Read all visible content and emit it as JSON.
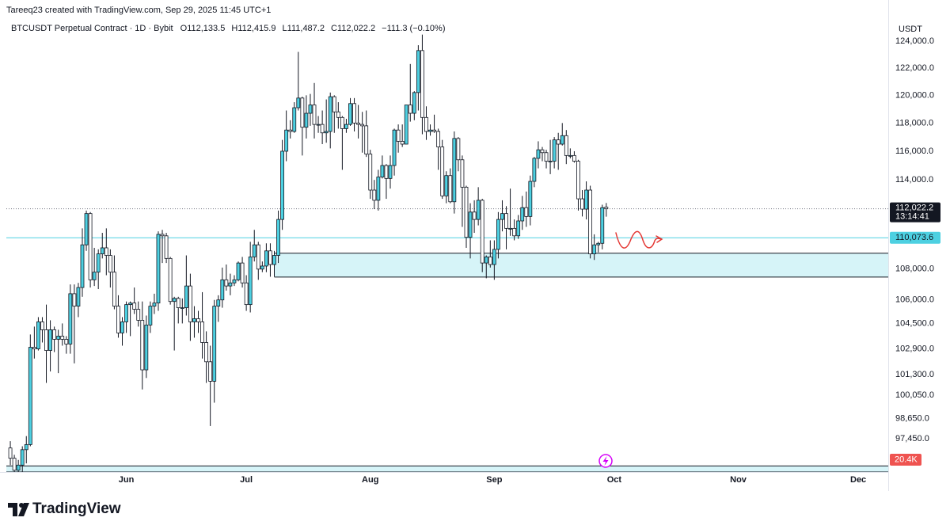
{
  "chart_data": {
    "type": "candlestick",
    "credit": "Tareeq23 created with TradingView.com, Sep 29, 2025 11:45 UTC+1",
    "title": "BTCUSDT Perpetual Contract · 1D · Bybit",
    "ohlc_labels": [
      "O112,133.5",
      "H112,415.9",
      "L111,487.2",
      "C112,022.2"
    ],
    "change": "−111.3 (−0.10%)",
    "currency": "USDT",
    "brand": "TradingView",
    "log_scale": true,
    "grid": false,
    "up_color": "#4dd0e1",
    "down_color": "#ffffff",
    "outline_color": "#131722",
    "xlim": [
      -1,
      219.5
    ],
    "xticks": [
      {
        "value": 29,
        "label": "Jun"
      },
      {
        "value": 59,
        "label": "Jul"
      },
      {
        "value": 90,
        "label": "Aug"
      },
      {
        "value": 121,
        "label": "Sep"
      },
      {
        "value": 151,
        "label": "Oct"
      },
      {
        "value": 182,
        "label": "Nov"
      },
      {
        "value": 212,
        "label": "Dec"
      }
    ],
    "ylim": [
      95500,
      124600
    ],
    "yticks": [
      {
        "value": 124000,
        "label": "124,000.0"
      },
      {
        "value": 122000,
        "label": "122,000.0"
      },
      {
        "value": 120000,
        "label": "120,000.0"
      },
      {
        "value": 118000,
        "label": "118,000.0"
      },
      {
        "value": 116000,
        "label": "116,000.0"
      },
      {
        "value": 114000,
        "label": "114,000.0"
      },
      {
        "value": 108000,
        "label": "108,000.0"
      },
      {
        "value": 106000,
        "label": "106,000.0"
      },
      {
        "value": 104500,
        "label": "104,500.0"
      },
      {
        "value": 102900,
        "label": "102,900.0"
      },
      {
        "value": 101300,
        "label": "101,300.0"
      },
      {
        "value": 100050,
        "label": "100,050.0"
      },
      {
        "value": 98650,
        "label": "98,650.0"
      },
      {
        "value": 97450,
        "label": "97,450.0"
      }
    ],
    "last_price": {
      "value": 112022.2,
      "label": "112,022.2"
    },
    "countdown": "13:14:41",
    "level_line": {
      "value": 110073.6,
      "label": "110,073.6",
      "color": "#4dd0e1"
    },
    "volume_label": "20.4K",
    "zones": [
      {
        "top": 109044,
        "bottom": 107482,
        "start": 66,
        "color": "#d6f4f8"
      },
      {
        "top": 95850,
        "bottom": 95500,
        "start": -1,
        "color": "#d6f4f8"
      }
    ],
    "candles": [
      [
        96900,
        97300,
        95900,
        96300
      ],
      [
        96300,
        96500,
        95400,
        95600
      ],
      [
        95600,
        96200,
        94800,
        95900
      ],
      [
        95900,
        97000,
        95300,
        96800
      ],
      [
        96800,
        97600,
        96000,
        97100
      ],
      [
        97100,
        103800,
        97000,
        103000
      ],
      [
        103000,
        104300,
        102300,
        102900
      ],
      [
        102900,
        104900,
        102800,
        104600
      ],
      [
        104600,
        104900,
        103300,
        104100
      ],
      [
        104100,
        105700,
        100800,
        102800
      ],
      [
        102800,
        104700,
        101500,
        104100
      ],
      [
        104100,
        104300,
        102700,
        103500
      ],
      [
        103500,
        104100,
        101400,
        103700
      ],
      [
        103700,
        104500,
        103100,
        103500
      ],
      [
        103500,
        103700,
        102600,
        103200
      ],
      [
        103200,
        107000,
        102600,
        106400
      ],
      [
        106400,
        107000,
        102000,
        105600
      ],
      [
        105600,
        107100,
        104900,
        106800
      ],
      [
        106800,
        110700,
        106200,
        109600
      ],
      [
        109600,
        111900,
        109200,
        111700
      ],
      [
        111700,
        111800,
        106800,
        107300
      ],
      [
        107300,
        109400,
        106900,
        107800
      ],
      [
        107800,
        109300,
        106700,
        109000
      ],
      [
        109000,
        110400,
        108700,
        109400
      ],
      [
        109400,
        110700,
        107600,
        108900
      ],
      [
        108900,
        109300,
        106800,
        107800
      ],
      [
        107800,
        108900,
        105400,
        105600
      ],
      [
        105600,
        106300,
        103600,
        103900
      ],
      [
        103900,
        104900,
        103100,
        104600
      ],
      [
        104600,
        105900,
        103900,
        105700
      ],
      [
        105700,
        105900,
        103700,
        105800
      ],
      [
        105800,
        106800,
        105100,
        105400
      ],
      [
        105400,
        105900,
        104300,
        104700
      ],
      [
        104700,
        105900,
        100400,
        101600
      ],
      [
        101600,
        105000,
        101100,
        104400
      ],
      [
        104400,
        105900,
        103900,
        105600
      ],
      [
        105600,
        106400,
        105100,
        105800
      ],
      [
        105800,
        110500,
        105300,
        110300
      ],
      [
        110300,
        110600,
        108400,
        110200
      ],
      [
        110200,
        110400,
        108400,
        108700
      ],
      [
        108700,
        108800,
        105700,
        105900
      ],
      [
        105900,
        106200,
        102800,
        106100
      ],
      [
        106100,
        106200,
        104500,
        105500
      ],
      [
        105500,
        106100,
        104500,
        105500
      ],
      [
        105500,
        108900,
        105000,
        106900
      ],
      [
        106900,
        107700,
        103400,
        104600
      ],
      [
        104600,
        105600,
        103600,
        104800
      ],
      [
        104800,
        105300,
        103900,
        104600
      ],
      [
        104600,
        106500,
        102300,
        103300
      ],
      [
        103300,
        104000,
        100800,
        102100
      ],
      [
        102100,
        103100,
        98200,
        100900
      ],
      [
        100900,
        106000,
        99600,
        105600
      ],
      [
        105600,
        106300,
        104600,
        106000
      ],
      [
        106000,
        108100,
        105500,
        107300
      ],
      [
        107300,
        108300,
        106600,
        106900
      ],
      [
        106900,
        107700,
        106300,
        107100
      ],
      [
        107100,
        107600,
        106900,
        107300
      ],
      [
        107300,
        108500,
        107200,
        108400
      ],
      [
        108400,
        108800,
        106800,
        107100
      ],
      [
        107100,
        107600,
        105300,
        105700
      ],
      [
        105700,
        109800,
        105200,
        108800
      ],
      [
        108800,
        110600,
        108500,
        109600
      ],
      [
        109600,
        109800,
        107300,
        108000
      ],
      [
        108000,
        108500,
        107800,
        108200
      ],
      [
        108200,
        109700,
        107800,
        109200
      ],
      [
        109200,
        109700,
        107500,
        108300
      ],
      [
        108300,
        109200,
        107500,
        108900
      ],
      [
        108900,
        111900,
        108400,
        111300
      ],
      [
        111300,
        116800,
        110600,
        116000
      ],
      [
        116000,
        118900,
        115300,
        117500
      ],
      [
        117500,
        118200,
        116900,
        117400
      ],
      [
        117400,
        119500,
        117300,
        119100
      ],
      [
        119100,
        123200,
        118900,
        119800
      ],
      [
        119800,
        119900,
        115700,
        117700
      ],
      [
        117700,
        120000,
        116900,
        118700
      ],
      [
        118700,
        120100,
        117800,
        119300
      ],
      [
        119300,
        120900,
        116900,
        117900
      ],
      [
        117900,
        118500,
        117300,
        117900
      ],
      [
        117900,
        118900,
        116500,
        117300
      ],
      [
        117300,
        119700,
        116600,
        117400
      ],
      [
        117400,
        120200,
        116200,
        119900
      ],
      [
        119900,
        120000,
        117300,
        118800
      ],
      [
        118800,
        119500,
        117600,
        118400
      ],
      [
        118400,
        118500,
        114700,
        117600
      ],
      [
        117600,
        118300,
        117300,
        117900
      ],
      [
        117900,
        119800,
        117800,
        119400
      ],
      [
        119400,
        119800,
        117400,
        118000
      ],
      [
        118000,
        119300,
        116900,
        117900
      ],
      [
        117900,
        118800,
        115900,
        117800
      ],
      [
        117800,
        118900,
        115600,
        115800
      ],
      [
        115800,
        116100,
        112700,
        113300
      ],
      [
        113300,
        114000,
        112000,
        112600
      ],
      [
        112600,
        114700,
        111900,
        114200
      ],
      [
        114200,
        115700,
        114100,
        115000
      ],
      [
        115000,
        115100,
        112700,
        114100
      ],
      [
        114100,
        115700,
        113400,
        115000
      ],
      [
        115000,
        117600,
        114300,
        117500
      ],
      [
        117500,
        117900,
        115900,
        116700
      ],
      [
        116700,
        117900,
        116300,
        116500
      ],
      [
        116500,
        119300,
        116500,
        119300
      ],
      [
        119300,
        122300,
        118100,
        118700
      ],
      [
        118700,
        120300,
        118200,
        120200
      ],
      [
        120200,
        123700,
        118900,
        123300
      ],
      [
        123300,
        124500,
        117200,
        118400
      ],
      [
        118400,
        119200,
        116800,
        117400
      ],
      [
        117400,
        117900,
        117100,
        117500
      ],
      [
        117500,
        118600,
        117300,
        117400
      ],
      [
        117400,
        117600,
        114700,
        116300
      ],
      [
        116300,
        116800,
        112700,
        112900
      ],
      [
        112900,
        114600,
        112400,
        114300
      ],
      [
        114300,
        114800,
        112400,
        112500
      ],
      [
        112500,
        117400,
        111700,
        116900
      ],
      [
        116900,
        117000,
        114600,
        115400
      ],
      [
        115400,
        115700,
        110800,
        113500
      ],
      [
        113500,
        113600,
        109400,
        110100
      ],
      [
        110100,
        112400,
        108700,
        111800
      ],
      [
        111800,
        112600,
        110400,
        111300
      ],
      [
        111300,
        113500,
        110900,
        112600
      ],
      [
        112600,
        112700,
        107800,
        108400
      ],
      [
        108400,
        108900,
        107400,
        108800
      ],
      [
        108800,
        109900,
        108100,
        108300
      ],
      [
        108300,
        109900,
        107300,
        109300
      ],
      [
        109300,
        111800,
        108700,
        111300
      ],
      [
        111300,
        112600,
        110500,
        111700
      ],
      [
        111700,
        112200,
        109300,
        110700
      ],
      [
        110700,
        113400,
        110200,
        110700
      ],
      [
        110700,
        111300,
        109900,
        110200
      ],
      [
        110200,
        111600,
        110000,
        111200
      ],
      [
        111200,
        112900,
        110600,
        112100
      ],
      [
        112100,
        113200,
        110800,
        111500
      ],
      [
        111500,
        114300,
        110900,
        113900
      ],
      [
        113900,
        115600,
        113500,
        115500
      ],
      [
        115500,
        116700,
        114800,
        116100
      ],
      [
        116100,
        116300,
        115300,
        115900
      ],
      [
        115900,
        116100,
        114800,
        115300
      ],
      [
        115300,
        116800,
        114400,
        115300
      ],
      [
        115300,
        117000,
        114800,
        116800
      ],
      [
        116800,
        117300,
        114700,
        116500
      ],
      [
        116500,
        118000,
        116400,
        117100
      ],
      [
        117100,
        117500,
        115100,
        115700
      ],
      [
        115700,
        116200,
        115500,
        115700
      ],
      [
        115700,
        116000,
        115200,
        115300
      ],
      [
        115300,
        115400,
        111900,
        112700
      ],
      [
        112700,
        113300,
        111500,
        112000
      ],
      [
        112000,
        113900,
        111300,
        113300
      ],
      [
        113300,
        113600,
        108700,
        109000
      ],
      [
        109000,
        110300,
        108600,
        109600
      ],
      [
        109600,
        109800,
        109100,
        109700
      ],
      [
        109700,
        112300,
        109300,
        112100
      ],
      [
        112133.5,
        112415.9,
        111487.2,
        112022.2
      ]
    ]
  }
}
